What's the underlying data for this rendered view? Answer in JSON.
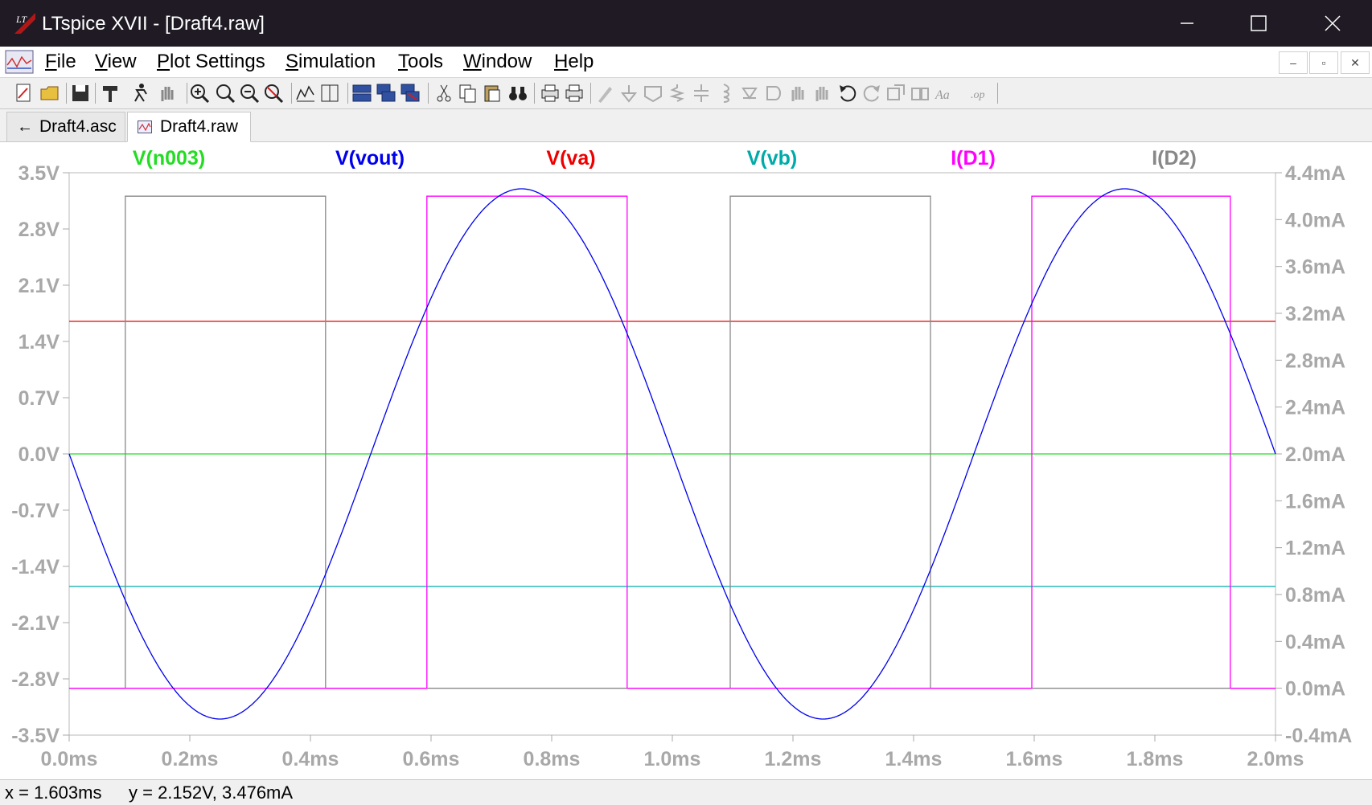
{
  "window": {
    "title": "LTspice XVII - [Draft4.raw]"
  },
  "menu": [
    {
      "label": "File"
    },
    {
      "label": "View"
    },
    {
      "label": "Plot Settings"
    },
    {
      "label": "Simulation"
    },
    {
      "label": "Tools"
    },
    {
      "label": "Window"
    },
    {
      "label": "Help"
    }
  ],
  "tabs": [
    {
      "label": "Draft4.asc",
      "active": false
    },
    {
      "label": "Draft4.raw",
      "active": true
    }
  ],
  "status": {
    "x_readout": "x = 1.603ms",
    "y_readout": "y = 2.152V, 3.476mA"
  },
  "chart_data": {
    "type": "line",
    "xlim": [
      0,
      2.0
    ],
    "ylim_left": [
      -3.5,
      3.5
    ],
    "ylim_right": [
      -0.4,
      4.4
    ],
    "x_ticks": [
      "0.0ms",
      "0.2ms",
      "0.4ms",
      "0.6ms",
      "0.8ms",
      "1.0ms",
      "1.2ms",
      "1.4ms",
      "1.6ms",
      "1.8ms",
      "2.0ms"
    ],
    "y_ticks_left": [
      "3.5V",
      "2.8V",
      "2.1V",
      "1.4V",
      "0.7V",
      "0.0V",
      "-0.7V",
      "-1.4V",
      "-2.1V",
      "-2.8V",
      "-3.5V"
    ],
    "y_ticks_right": [
      "4.4mA",
      "4.0mA",
      "3.6mA",
      "3.2mA",
      "2.8mA",
      "2.4mA",
      "2.0mA",
      "1.6mA",
      "1.2mA",
      "0.8mA",
      "0.4mA",
      "0.0mA",
      "-0.4mA"
    ],
    "grid": false,
    "legend_placement": "top",
    "series": [
      {
        "name": "V(n003)",
        "color": "#22dd22",
        "axis": "left",
        "kind": "constant",
        "value": 0.0
      },
      {
        "name": "V(vout)",
        "color": "#0000ee",
        "axis": "left",
        "kind": "sine",
        "amplitude": 3.3,
        "frequency_khz": 1.0,
        "phase_sign": -1
      },
      {
        "name": "V(va)",
        "color": "#ee0000",
        "axis": "left",
        "kind": "constant",
        "value": 1.65
      },
      {
        "name": "V(vb)",
        "color": "#00aaaa",
        "axis": "left",
        "kind": "constant",
        "value": -1.65
      },
      {
        "name": "I(D1)",
        "color": "#ff00ff",
        "axis": "right",
        "kind": "pulse",
        "low": 0.0,
        "high": 4.2,
        "intervals": [
          [
            0.593,
            0.925
          ],
          [
            1.596,
            1.925
          ]
        ]
      },
      {
        "name": "I(D2)",
        "color": "#888888",
        "axis": "right",
        "kind": "pulse",
        "low": 0.0,
        "high": 4.2,
        "intervals": [
          [
            0.093,
            0.425
          ],
          [
            1.096,
            1.428
          ]
        ]
      }
    ]
  }
}
